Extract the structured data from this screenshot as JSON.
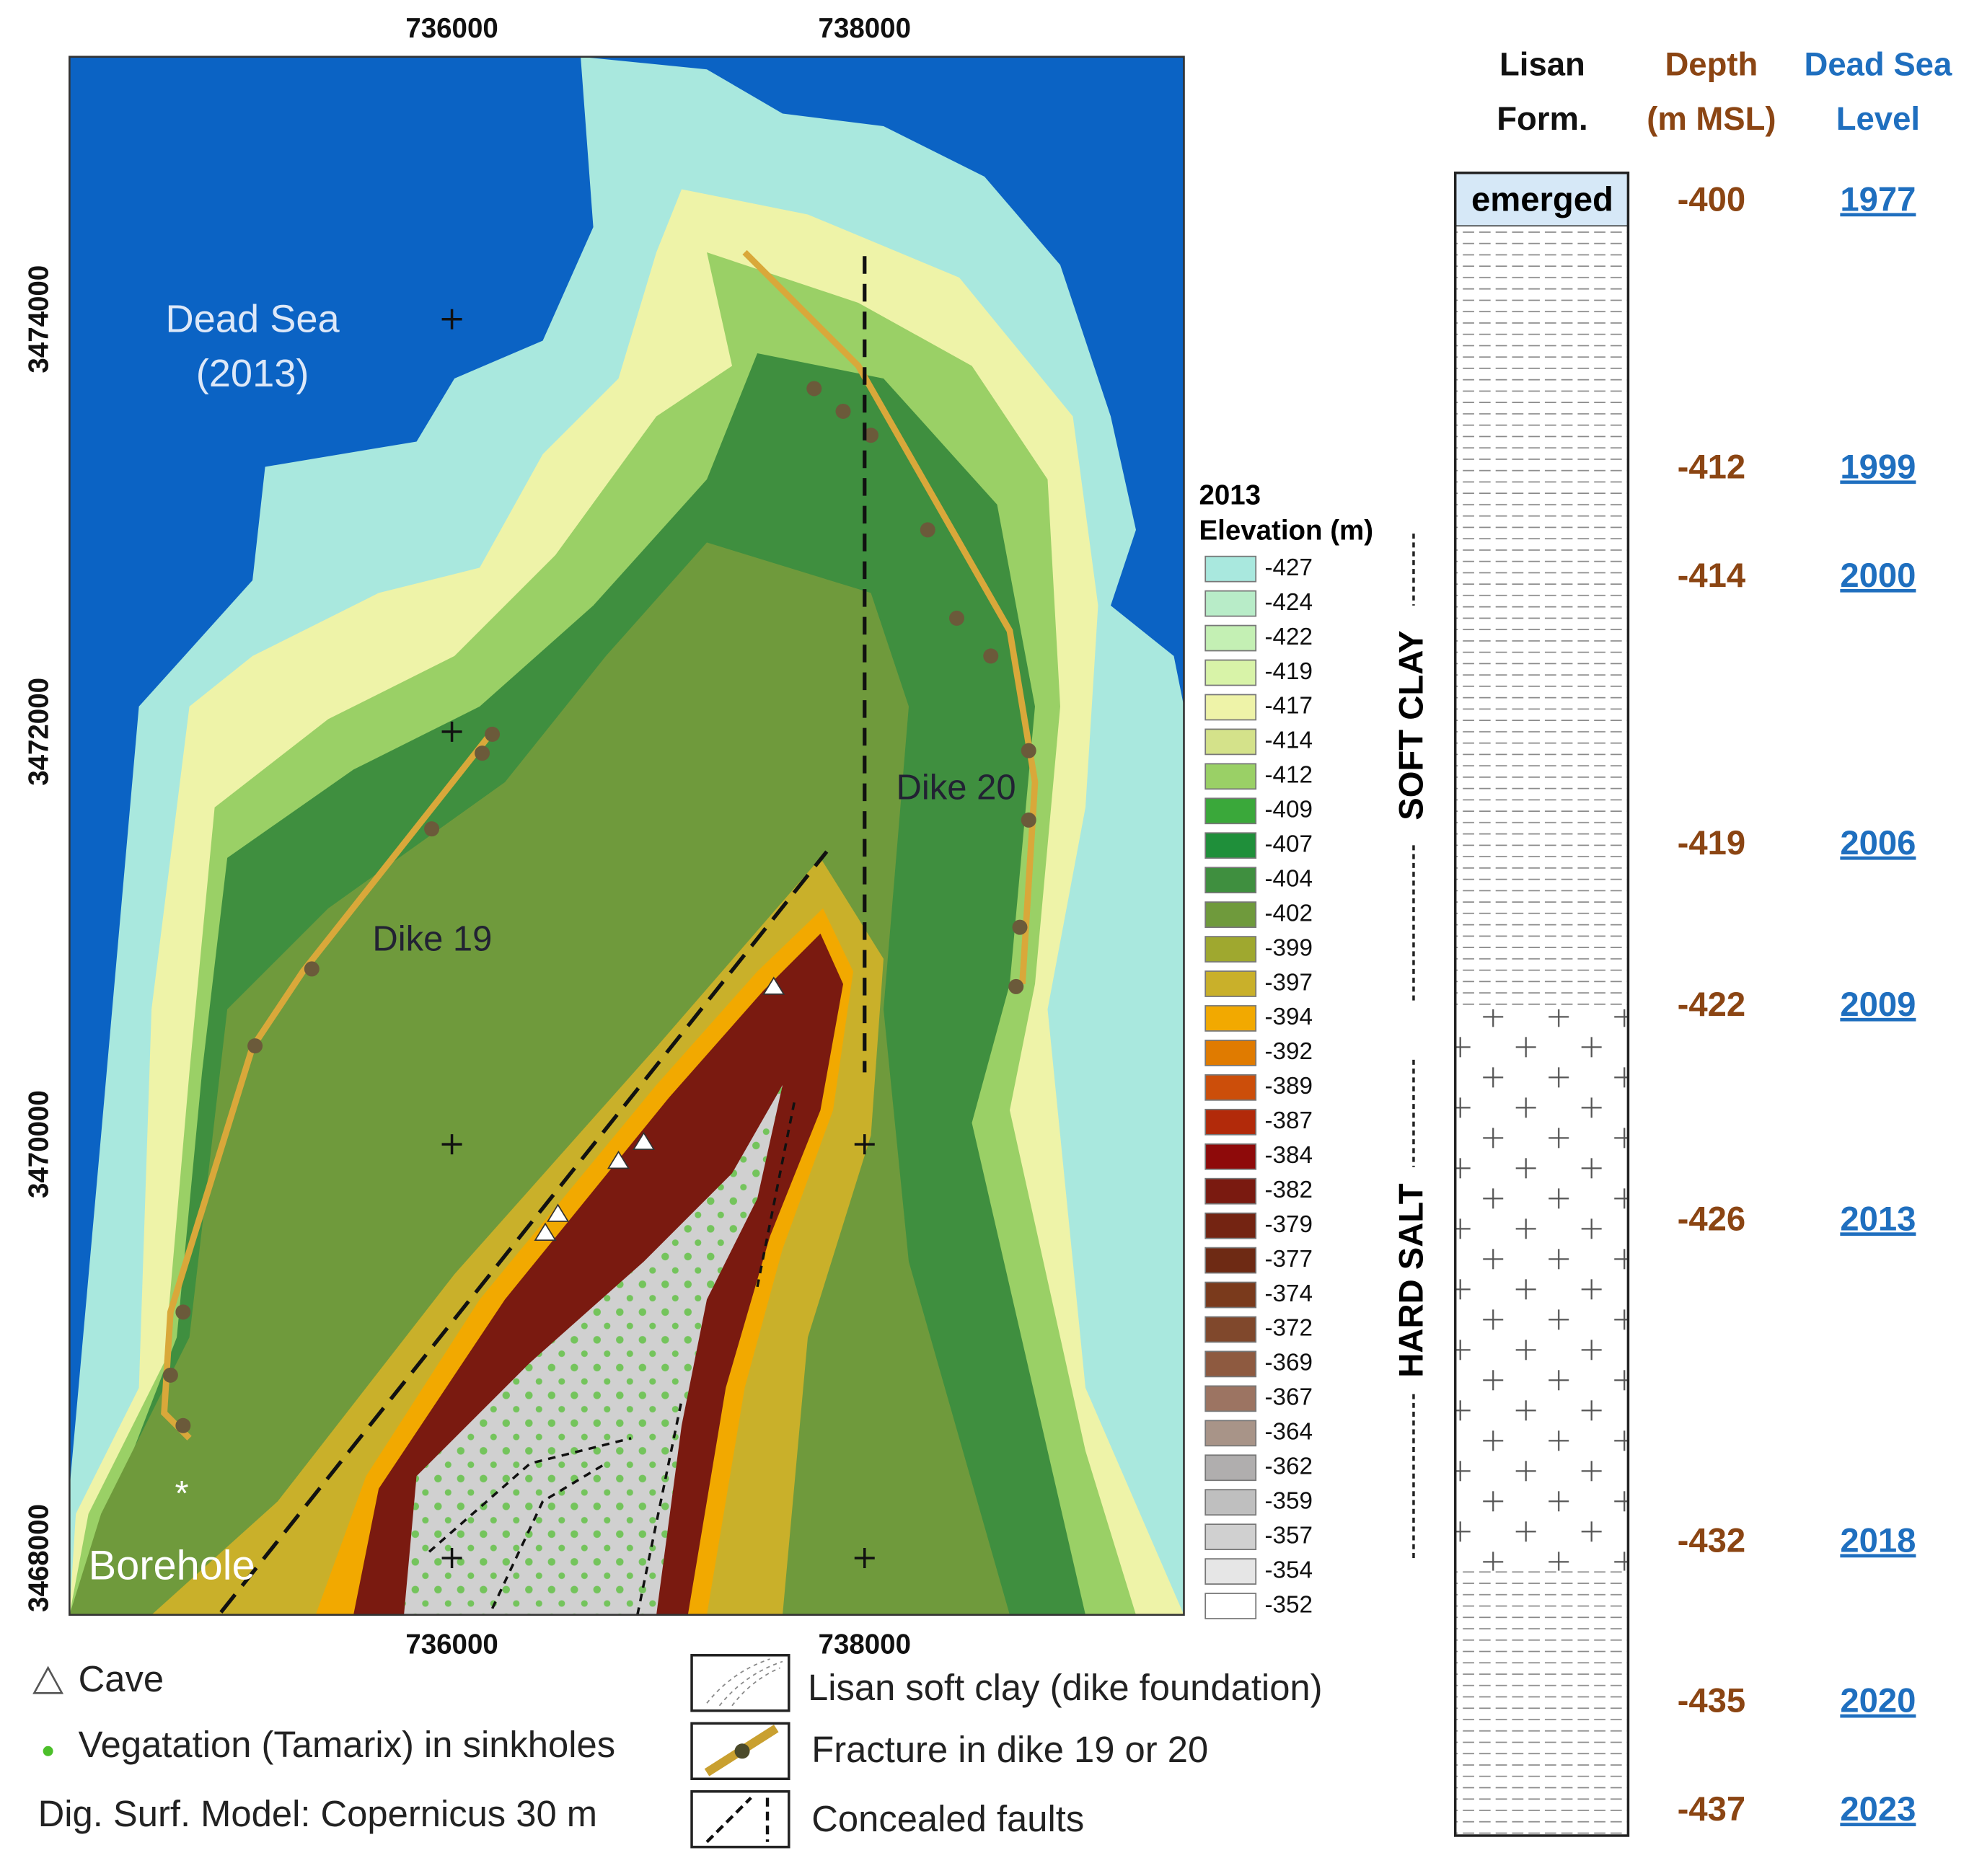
{
  "map": {
    "x_ticks_top": [
      "736000",
      "738000"
    ],
    "x_ticks_bottom": [
      "736000",
      "738000"
    ],
    "y_ticks": [
      "3474000",
      "3472000",
      "3470000",
      "3468000"
    ],
    "labels": {
      "sea": "Dead Sea",
      "sea_year": "(2013)",
      "dike19": "Dike 19",
      "dike20": "Dike 20",
      "borehole": "Borehole",
      "borehole_mark": "*"
    }
  },
  "elevation_legend": {
    "title_year": "2013",
    "title": "Elevation (m)",
    "entries": [
      {
        "value": -427,
        "color": "#a9e8de"
      },
      {
        "value": -424,
        "color": "#b8ecc8"
      },
      {
        "value": -422,
        "color": "#c4f0b4"
      },
      {
        "value": -419,
        "color": "#d8f3a8"
      },
      {
        "value": -417,
        "color": "#eef3a8"
      },
      {
        "value": -414,
        "color": "#d4e28a"
      },
      {
        "value": -412,
        "color": "#9ad066"
      },
      {
        "value": -409,
        "color": "#3aa83a"
      },
      {
        "value": -407,
        "color": "#1f8f3a"
      },
      {
        "value": -404,
        "color": "#3f8f3f"
      },
      {
        "value": -402,
        "color": "#6f9a3c"
      },
      {
        "value": -399,
        "color": "#9fa82f"
      },
      {
        "value": -397,
        "color": "#c9b02a"
      },
      {
        "value": -394,
        "color": "#f2a900"
      },
      {
        "value": -392,
        "color": "#e07b00"
      },
      {
        "value": -389,
        "color": "#cc4e0a"
      },
      {
        "value": -387,
        "color": "#b22a0a"
      },
      {
        "value": -384,
        "color": "#8e0a0a"
      },
      {
        "value": -382,
        "color": "#7a1a10"
      },
      {
        "value": -379,
        "color": "#742412"
      },
      {
        "value": -377,
        "color": "#6e2a14"
      },
      {
        "value": -374,
        "color": "#7a3a1c"
      },
      {
        "value": -372,
        "color": "#80482c"
      },
      {
        "value": -369,
        "color": "#8e5a40"
      },
      {
        "value": -367,
        "color": "#9c7462"
      },
      {
        "value": -364,
        "color": "#a89488"
      },
      {
        "value": -362,
        "color": "#b0aeae"
      },
      {
        "value": -359,
        "color": "#bfbfbf"
      },
      {
        "value": -357,
        "color": "#d0d0d0"
      },
      {
        "value": -354,
        "color": "#e6e6e6"
      },
      {
        "value": -352,
        "color": "#ffffff"
      }
    ]
  },
  "legend": {
    "cave": "Cave",
    "vegetation": "Vegatation (Tamarix) in sinkholes",
    "dsm": "Dig. Surf. Model: Copernicus 30 m",
    "clay": "Lisan soft clay (dike foundation)",
    "fracture": "Fracture in dike 19 or 20",
    "faults": "Concealed faults"
  },
  "column": {
    "headers": {
      "lisan_1": "Lisan",
      "lisan_2": "Form.",
      "depth_1": "Depth",
      "depth_2": "(m MSL)",
      "level_1": "Dead Sea",
      "level_2": "Level"
    },
    "emerged": "emerged",
    "soft_clay": "SOFT  CLAY",
    "hard_salt": "HARD  SALT",
    "rows": [
      {
        "depth": -400,
        "year": "1977"
      },
      {
        "depth": -412,
        "year": "1999"
      },
      {
        "depth": -414,
        "year": "2000"
      },
      {
        "depth": -419,
        "year": "2006"
      },
      {
        "depth": -422,
        "year": "2009"
      },
      {
        "depth": -426,
        "year": "2013"
      },
      {
        "depth": -432,
        "year": "2018"
      },
      {
        "depth": -435,
        "year": "2020"
      },
      {
        "depth": -437,
        "year": "2023"
      }
    ]
  }
}
